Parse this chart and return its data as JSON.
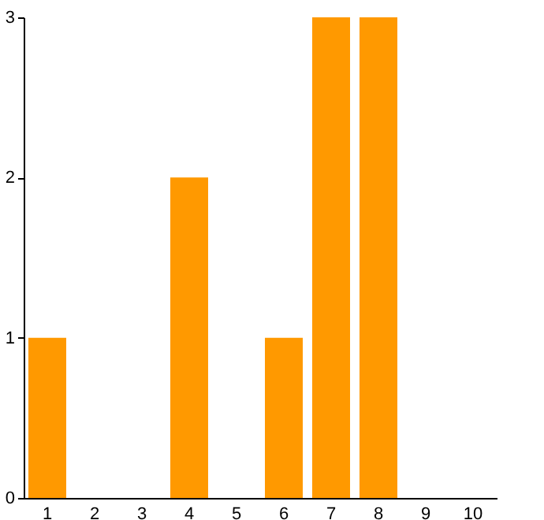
{
  "chart_data": {
    "type": "bar",
    "categories": [
      "1",
      "2",
      "3",
      "4",
      "5",
      "6",
      "7",
      "8",
      "9",
      "10"
    ],
    "values": [
      1,
      0,
      0,
      2,
      0,
      1,
      3,
      3,
      0,
      0
    ],
    "color": "#ff9900",
    "ylim": [
      0,
      3
    ],
    "yticks": [
      0,
      1,
      2,
      3
    ],
    "grid": false
  }
}
